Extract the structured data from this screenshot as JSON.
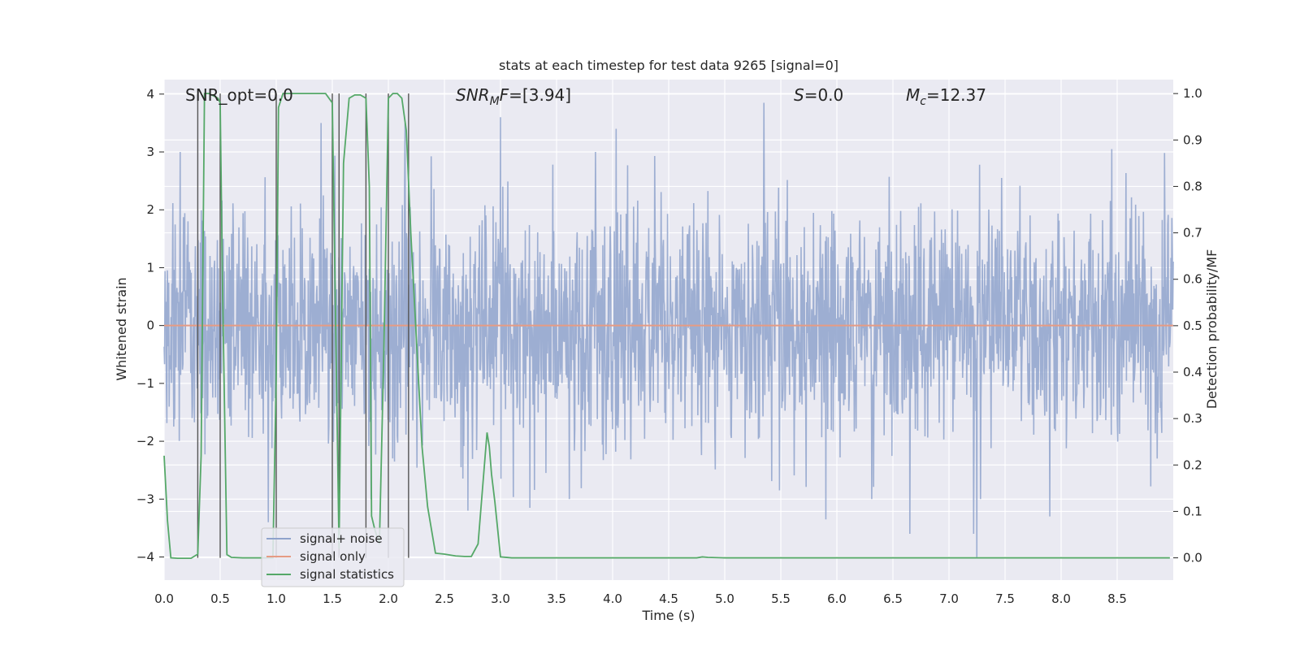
{
  "chart_data": {
    "type": "line",
    "title": "stats at each timestep for test data 9265 [signal=0]",
    "xlabel": "Time (s)",
    "ylabel_left": "Whitened strain",
    "ylabel_right": "Detection probability/MF",
    "xlim": [
      0.0,
      9.0
    ],
    "ylim_left": [
      -4.4,
      4.25
    ],
    "ylim_right": [
      -0.048,
      1.03
    ],
    "xticks": [
      "0.0",
      "0.5",
      "1.0",
      "1.5",
      "2.0",
      "2.5",
      "3.0",
      "3.5",
      "4.0",
      "4.5",
      "5.0",
      "5.5",
      "6.0",
      "6.5",
      "7.0",
      "7.5",
      "8.0",
      "8.5"
    ],
    "yticks_left": [
      "4",
      "3",
      "2",
      "1",
      "0",
      "−1",
      "−2",
      "−3",
      "−4"
    ],
    "yticks_right": [
      "1.0",
      "0.9",
      "0.8",
      "0.7",
      "0.6",
      "0.5",
      "0.4",
      "0.3",
      "0.2",
      "0.1",
      "0.0"
    ],
    "grid": true,
    "annotations": {
      "snr_opt": "SNR_opt=0.0",
      "snr_mf_label": "SNR",
      "snr_mf_sub": "M",
      "snr_mf_rest": "F",
      "snr_mf_value": "=[3.94]",
      "s_label": "S",
      "s_value": "=0.0",
      "mc_label": "M",
      "mc_sub": "c",
      "mc_value": "=12.37"
    },
    "legend": {
      "placement": "lower-left",
      "entries": [
        "signal+ noise",
        "signal only",
        "signal statistics"
      ]
    },
    "series": [
      {
        "name": "signal+ noise",
        "axis": "left",
        "color": "#8fa3cc",
        "description_values": "noise, approx. N(0, 1.0) whitened strain samples over 0-9 s",
        "spikes": [
          {
            "x": 3.0,
            "y": 3.6
          },
          {
            "x": 5.35,
            "y": 3.85
          },
          {
            "x": 4.03,
            "y": 3.4
          },
          {
            "x": 8.45,
            "y": 3.05
          },
          {
            "x": 2.15,
            "y": 3.5
          },
          {
            "x": 1.4,
            "y": 3.5
          },
          {
            "x": 7.25,
            "y": -4.0
          },
          {
            "x": 7.22,
            "y": -3.6
          },
          {
            "x": 6.65,
            "y": -3.6
          },
          {
            "x": 5.9,
            "y": -3.35
          },
          {
            "x": 2.71,
            "y": -3.2
          },
          {
            "x": 3.26,
            "y": -3.15
          },
          {
            "x": 7.9,
            "y": -3.3
          },
          {
            "x": 0.93,
            "y": -3.4
          }
        ]
      },
      {
        "name": "signal only",
        "axis": "left",
        "color": "#e69b84",
        "x": [
          0.0,
          9.0
        ],
        "y": [
          0.0,
          0.0
        ]
      },
      {
        "name": "signal statistics",
        "axis": "right",
        "color": "#55a868",
        "x": [
          0.0,
          0.03,
          0.06,
          0.12,
          0.18,
          0.24,
          0.3,
          0.33,
          0.36,
          0.4,
          0.44,
          0.48,
          0.5,
          0.52,
          0.56,
          0.6,
          0.7,
          0.8,
          0.9,
          0.97,
          1.0,
          1.02,
          1.06,
          1.1,
          1.2,
          1.3,
          1.4,
          1.44,
          1.5,
          1.53,
          1.56,
          1.6,
          1.65,
          1.7,
          1.75,
          1.8,
          1.83,
          1.85,
          1.88,
          1.92,
          1.96,
          2.0,
          2.04,
          2.08,
          2.12,
          2.16,
          2.2,
          2.25,
          2.3,
          2.35,
          2.42,
          2.5,
          2.6,
          2.68,
          2.74,
          2.8,
          2.84,
          2.88,
          2.9,
          2.92,
          2.95,
          3.0,
          3.1,
          3.5,
          4.0,
          4.5,
          4.75,
          4.8,
          4.85,
          5.0,
          6.0,
          7.0,
          8.0,
          8.97
        ],
        "y": [
          0.22,
          0.08,
          0.0,
          -0.001,
          -0.001,
          -0.001,
          0.008,
          0.22,
          1.0,
          1.0,
          0.995,
          0.99,
          0.98,
          0.6,
          0.007,
          0.001,
          0.0,
          0.0,
          0.0,
          0.0,
          0.4,
          0.97,
          1.0,
          1.0,
          1.0,
          1.0,
          1.0,
          1.0,
          0.98,
          0.5,
          0.02,
          0.85,
          0.99,
          0.997,
          0.997,
          0.99,
          0.8,
          0.09,
          0.06,
          0.03,
          0.45,
          0.99,
          1.0,
          1.0,
          0.99,
          0.92,
          0.7,
          0.47,
          0.24,
          0.11,
          0.01,
          0.008,
          0.004,
          0.003,
          0.003,
          0.03,
          0.15,
          0.27,
          0.24,
          0.18,
          0.12,
          0.002,
          0.0,
          0.0,
          0.0,
          0.0,
          0.0,
          0.002,
          0.001,
          0.0,
          0.0,
          0.0,
          0.0,
          0.0
        ]
      }
    ],
    "vertical_markers": {
      "color": "#555555",
      "x": [
        0.3,
        0.5,
        1.0,
        1.5,
        1.56,
        1.8,
        2.0,
        2.18
      ]
    }
  }
}
